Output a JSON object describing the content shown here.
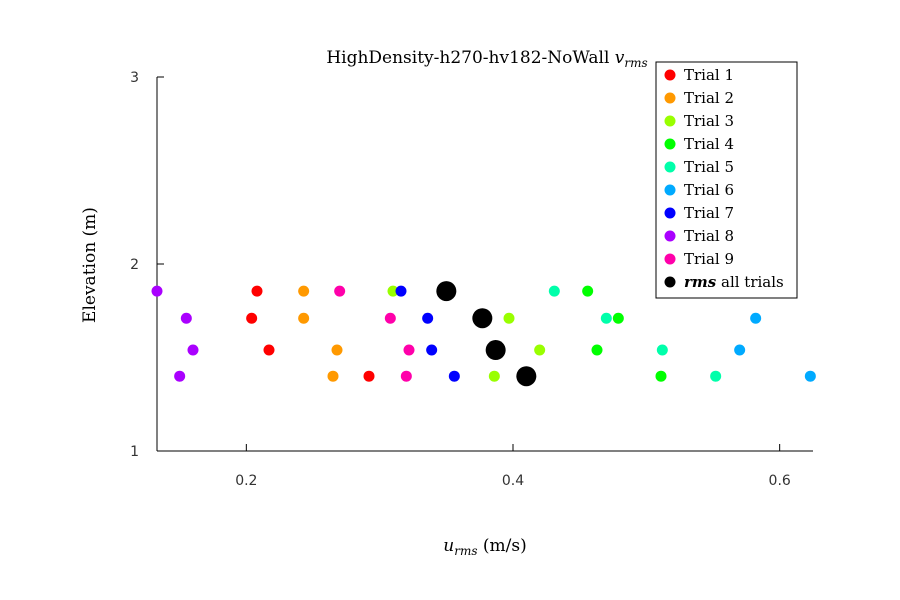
{
  "chart_data": {
    "type": "scatter",
    "title": "HighDensity-h270-hv182-NoWall",
    "title_math": "v",
    "title_math_sub": "rms",
    "xlabel_math": "u",
    "xlabel_math_sub": "rms",
    "xlabel_text": " (m/s)",
    "ylabel": "Elevation (m)",
    "xlim": [
      0.133,
      0.625
    ],
    "ylim": [
      1,
      3
    ],
    "xticks": [
      0.2,
      0.4,
      0.6
    ],
    "xtick_labels": [
      "0.2",
      "0.4",
      "0.6"
    ],
    "yticks": [
      1,
      2,
      3
    ],
    "ytick_labels": [
      "1",
      "2",
      "3"
    ],
    "legend_position": "top-right",
    "series": [
      {
        "name": "Trial 1",
        "color": "#ff0000",
        "points": [
          {
            "x": 0.208,
            "y": 1.855
          },
          {
            "x": 0.204,
            "y": 1.71
          },
          {
            "x": 0.217,
            "y": 1.54
          },
          {
            "x": 0.292,
            "y": 1.4
          }
        ]
      },
      {
        "name": "Trial 2",
        "color": "#ff9900",
        "points": [
          {
            "x": 0.243,
            "y": 1.855
          },
          {
            "x": 0.243,
            "y": 1.71
          },
          {
            "x": 0.268,
            "y": 1.54
          },
          {
            "x": 0.265,
            "y": 1.4
          }
        ]
      },
      {
        "name": "Trial 3",
        "color": "#99ff00",
        "points": [
          {
            "x": 0.31,
            "y": 1.855
          },
          {
            "x": 0.397,
            "y": 1.71
          },
          {
            "x": 0.42,
            "y": 1.54
          },
          {
            "x": 0.386,
            "y": 1.4
          }
        ]
      },
      {
        "name": "Trial 4",
        "color": "#00ff00",
        "points": [
          {
            "x": 0.456,
            "y": 1.855
          },
          {
            "x": 0.479,
            "y": 1.71
          },
          {
            "x": 0.463,
            "y": 1.54
          },
          {
            "x": 0.511,
            "y": 1.4
          }
        ]
      },
      {
        "name": "Trial 5",
        "color": "#00ffaa",
        "points": [
          {
            "x": 0.431,
            "y": 1.855
          },
          {
            "x": 0.47,
            "y": 1.71
          },
          {
            "x": 0.512,
            "y": 1.54
          },
          {
            "x": 0.552,
            "y": 1.4
          }
        ]
      },
      {
        "name": "Trial 6",
        "color": "#00aaff",
        "points": [
          {
            "x": 0.582,
            "y": 1.71
          },
          {
            "x": 0.57,
            "y": 1.54
          },
          {
            "x": 0.623,
            "y": 1.4
          }
        ]
      },
      {
        "name": "Trial 7",
        "color": "#0000ff",
        "points": [
          {
            "x": 0.316,
            "y": 1.855
          },
          {
            "x": 0.336,
            "y": 1.71
          },
          {
            "x": 0.339,
            "y": 1.54
          },
          {
            "x": 0.356,
            "y": 1.4
          }
        ]
      },
      {
        "name": "Trial 8",
        "color": "#aa00ff",
        "points": [
          {
            "x": 0.133,
            "y": 1.855
          },
          {
            "x": 0.155,
            "y": 1.71
          },
          {
            "x": 0.16,
            "y": 1.54
          },
          {
            "x": 0.15,
            "y": 1.4
          }
        ]
      },
      {
        "name": "Trial 9",
        "color": "#ff00aa",
        "points": [
          {
            "x": 0.27,
            "y": 1.855
          },
          {
            "x": 0.308,
            "y": 1.71
          },
          {
            "x": 0.322,
            "y": 1.54
          },
          {
            "x": 0.32,
            "y": 1.4
          }
        ]
      },
      {
        "name_math": "rms",
        "name": " all trials",
        "color": "#000000",
        "large": true,
        "points": [
          {
            "x": 0.35,
            "y": 1.855
          },
          {
            "x": 0.377,
            "y": 1.71
          },
          {
            "x": 0.387,
            "y": 1.54
          },
          {
            "x": 0.41,
            "y": 1.4
          }
        ]
      }
    ]
  }
}
